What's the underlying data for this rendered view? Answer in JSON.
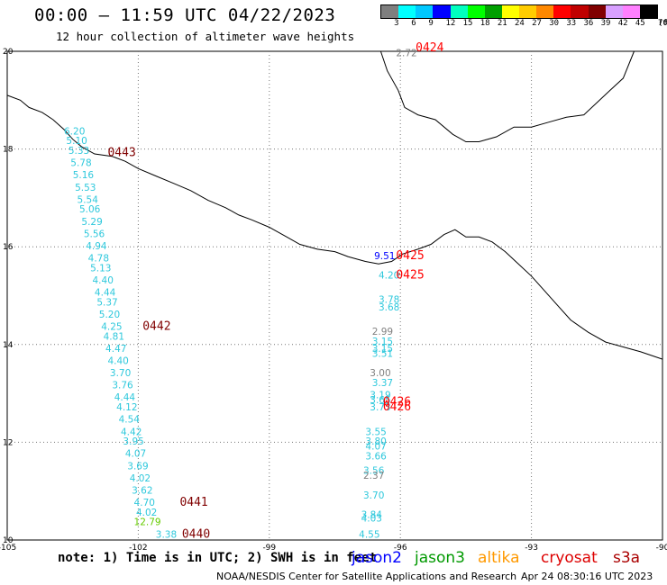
{
  "title": "00:00 – 11:59 UTC 04/22/2023",
  "subtitle": "12 hour collection of altimeter wave heights",
  "legend": {
    "labels": [
      "3",
      "6",
      "9",
      "12",
      "15",
      "18",
      "21",
      "24",
      "27",
      "30",
      "33",
      "36",
      "39",
      "42",
      "45",
      "70",
      "(ft)"
    ],
    "colors": [
      "#7f7f7f",
      "#00ffff",
      "#00c8ff",
      "#0000ff",
      "#00ffbf",
      "#00ff00",
      "#00a000",
      "#ffff00",
      "#ffcc00",
      "#ff8800",
      "#ff0000",
      "#c00000",
      "#800000",
      "#d8a0ff",
      "#ff80ff",
      "#000000"
    ]
  },
  "axes": {
    "x_ticks": [
      "-105",
      "-102",
      "-99",
      "-96",
      "-93",
      "-90"
    ],
    "y_ticks": [
      "20",
      "18",
      "16",
      "14",
      "12",
      "10"
    ]
  },
  "tracks": [
    {
      "name": "track-west-cyan",
      "color": "#2ec8dc",
      "points": [
        {
          "lon": -103.7,
          "lat": 18.3,
          "value": "6.20"
        },
        {
          "lon": -103.65,
          "lat": 18.1,
          "value": "5.10"
        },
        {
          "lon": -103.6,
          "lat": 17.9,
          "value": "5.33"
        },
        {
          "lon": -103.55,
          "lat": 17.65,
          "value": "5.78"
        },
        {
          "lon": -103.5,
          "lat": 17.4,
          "value": "5.16"
        },
        {
          "lon": -103.45,
          "lat": 17.15,
          "value": "5.53"
        },
        {
          "lon": -103.4,
          "lat": 16.9,
          "value": "5.54"
        },
        {
          "lon": -103.35,
          "lat": 16.7,
          "value": "5.06"
        },
        {
          "lon": -103.3,
          "lat": 16.45,
          "value": "5.29"
        },
        {
          "lon": -103.25,
          "lat": 16.2,
          "value": "5.56"
        },
        {
          "lon": -103.2,
          "lat": 15.95,
          "value": "4.94"
        },
        {
          "lon": -103.15,
          "lat": 15.7,
          "value": "4.78"
        },
        {
          "lon": -103.1,
          "lat": 15.5,
          "value": "5.13"
        },
        {
          "lon": -103.05,
          "lat": 15.25,
          "value": "4.40"
        },
        {
          "lon": -103.0,
          "lat": 15.0,
          "value": "4.44"
        },
        {
          "lon": -102.95,
          "lat": 14.8,
          "value": "5.37"
        },
        {
          "lon": -102.9,
          "lat": 14.55,
          "value": "5.20"
        },
        {
          "lon": -102.85,
          "lat": 14.3,
          "value": "4.25"
        },
        {
          "lon": -102.8,
          "lat": 14.1,
          "value": "4.81"
        },
        {
          "lon": -102.75,
          "lat": 13.85,
          "value": "4.47"
        },
        {
          "lon": -102.7,
          "lat": 13.6,
          "value": "4.40"
        },
        {
          "lon": -102.65,
          "lat": 13.35,
          "value": "3.70"
        },
        {
          "lon": -102.6,
          "lat": 13.1,
          "value": "3.76"
        },
        {
          "lon": -102.55,
          "lat": 12.85,
          "value": "4.44"
        },
        {
          "lon": -102.5,
          "lat": 12.65,
          "value": "4.12"
        },
        {
          "lon": -102.45,
          "lat": 12.4,
          "value": "4.54"
        },
        {
          "lon": -102.4,
          "lat": 12.15,
          "value": "4.42"
        },
        {
          "lon": -102.35,
          "lat": 11.95,
          "value": "3.95"
        },
        {
          "lon": -102.3,
          "lat": 11.7,
          "value": "4.07"
        },
        {
          "lon": -102.25,
          "lat": 11.45,
          "value": "3.69"
        },
        {
          "lon": -102.2,
          "lat": 11.2,
          "value": "4.02"
        },
        {
          "lon": -102.15,
          "lat": 10.95,
          "value": "3.62"
        },
        {
          "lon": -102.1,
          "lat": 10.7,
          "value": "4.70"
        },
        {
          "lon": -102.05,
          "lat": 10.5,
          "value": "4.02"
        },
        {
          "lon": -101.6,
          "lat": 10.05,
          "value": "3.38"
        }
      ]
    },
    {
      "name": "track-east-cyan",
      "color": "#2ec8dc",
      "points": [
        {
          "lon": -96.5,
          "lat": 15.35,
          "value": "4.20"
        },
        {
          "lon": -96.5,
          "lat": 14.85,
          "value": "3.78"
        },
        {
          "lon": -96.5,
          "lat": 14.7,
          "value": "3.68"
        },
        {
          "lon": -96.65,
          "lat": 14.0,
          "value": "3.15"
        },
        {
          "lon": -96.65,
          "lat": 13.85,
          "value": "3.15"
        },
        {
          "lon": -96.65,
          "lat": 13.75,
          "value": "3.51"
        },
        {
          "lon": -96.65,
          "lat": 13.15,
          "value": "3.37"
        },
        {
          "lon": -96.7,
          "lat": 12.9,
          "value": "3.19"
        },
        {
          "lon": -96.7,
          "lat": 12.8,
          "value": "3.65"
        },
        {
          "lon": -96.7,
          "lat": 12.65,
          "value": "3.73"
        },
        {
          "lon": -96.8,
          "lat": 12.15,
          "value": "3.55"
        },
        {
          "lon": -96.8,
          "lat": 11.95,
          "value": "3.80"
        },
        {
          "lon": -96.8,
          "lat": 11.85,
          "value": "4.07"
        },
        {
          "lon": -96.8,
          "lat": 11.65,
          "value": "3.66"
        },
        {
          "lon": -96.85,
          "lat": 11.35,
          "value": "3.56"
        },
        {
          "lon": -96.85,
          "lat": 10.85,
          "value": "3.70"
        },
        {
          "lon": -96.9,
          "lat": 10.45,
          "value": "3.84"
        },
        {
          "lon": -96.9,
          "lat": 10.38,
          "value": "4.03"
        },
        {
          "lon": -96.95,
          "lat": 10.05,
          "value": "4.55"
        }
      ]
    },
    {
      "name": "track-grey",
      "color": "#808080",
      "points": [
        {
          "lon": -96.1,
          "lat": 19.9,
          "value": "2.72"
        },
        {
          "lon": -96.65,
          "lat": 14.2,
          "value": "2.99"
        },
        {
          "lon": -96.7,
          "lat": 13.35,
          "value": "3.00"
        },
        {
          "lon": -96.85,
          "lat": 11.25,
          "value": "2.37"
        }
      ]
    },
    {
      "name": "track-blue",
      "color": "#0000ff",
      "points": [
        {
          "lon": -96.6,
          "lat": 15.75,
          "value": "9.51"
        }
      ]
    },
    {
      "name": "track-green",
      "color": "#66cc00",
      "points": [
        {
          "lon": -102.1,
          "lat": 10.3,
          "value": "12.79"
        }
      ]
    }
  ],
  "time_labels": [
    {
      "lon": -102.7,
      "lat": 17.85,
      "text": "0443",
      "color": "#800000"
    },
    {
      "lon": -101.9,
      "lat": 14.3,
      "text": "0442",
      "color": "#800000"
    },
    {
      "lon": -101.05,
      "lat": 10.7,
      "text": "0441",
      "color": "#800000"
    },
    {
      "lon": -101.0,
      "lat": 10.05,
      "text": "0440",
      "color": "#800000"
    },
    {
      "lon": -95.65,
      "lat": 20.0,
      "text": "0424",
      "color": "#ff0000"
    },
    {
      "lon": -96.1,
      "lat": 15.75,
      "text": "0425",
      "color": "#ff0000"
    },
    {
      "lon": -96.1,
      "lat": 15.35,
      "text": "0425",
      "color": "#ff0000"
    },
    {
      "lon": -96.4,
      "lat": 12.75,
      "text": "0426",
      "color": "#ff0000"
    },
    {
      "lon": -96.4,
      "lat": 12.65,
      "text": "0426",
      "color": "#ff0000"
    }
  ],
  "coastline": [
    [
      -105,
      19.1
    ],
    [
      -104.7,
      19.0
    ],
    [
      -104.5,
      18.85
    ],
    [
      -104.2,
      18.75
    ],
    [
      -103.95,
      18.6
    ],
    [
      -103.7,
      18.4
    ],
    [
      -103.5,
      18.2
    ],
    [
      -103.3,
      18.05
    ],
    [
      -103.0,
      17.9
    ],
    [
      -102.6,
      17.85
    ],
    [
      -102.3,
      17.75
    ],
    [
      -102.0,
      17.6
    ],
    [
      -101.6,
      17.45
    ],
    [
      -101.2,
      17.3
    ],
    [
      -100.8,
      17.15
    ],
    [
      -100.4,
      16.95
    ],
    [
      -100.0,
      16.8
    ],
    [
      -99.7,
      16.65
    ],
    [
      -99.4,
      16.55
    ],
    [
      -99.0,
      16.4
    ],
    [
      -98.6,
      16.2
    ],
    [
      -98.3,
      16.05
    ],
    [
      -97.9,
      15.95
    ],
    [
      -97.5,
      15.9
    ],
    [
      -97.2,
      15.8
    ],
    [
      -96.8,
      15.7
    ],
    [
      -96.5,
      15.65
    ],
    [
      -96.2,
      15.7
    ],
    [
      -95.95,
      15.85
    ],
    [
      -95.6,
      15.95
    ],
    [
      -95.3,
      16.05
    ],
    [
      -95.0,
      16.25
    ],
    [
      -94.75,
      16.35
    ],
    [
      -94.5,
      16.2
    ],
    [
      -94.2,
      16.2
    ],
    [
      -93.9,
      16.1
    ],
    [
      -93.6,
      15.9
    ],
    [
      -93.3,
      15.65
    ],
    [
      -93.0,
      15.4
    ],
    [
      -92.7,
      15.1
    ],
    [
      -92.4,
      14.8
    ],
    [
      -92.1,
      14.5
    ],
    [
      -91.7,
      14.25
    ],
    [
      -91.3,
      14.05
    ],
    [
      -90.9,
      13.95
    ],
    [
      -90.5,
      13.85
    ],
    [
      -90.0,
      13.7
    ]
  ],
  "gulf_coast": [
    [
      -96.45,
      20.0
    ],
    [
      -96.3,
      19.6
    ],
    [
      -96.05,
      19.2
    ],
    [
      -95.9,
      18.85
    ],
    [
      -95.6,
      18.7
    ],
    [
      -95.2,
      18.6
    ],
    [
      -94.8,
      18.3
    ],
    [
      -94.5,
      18.15
    ],
    [
      -94.2,
      18.15
    ],
    [
      -93.8,
      18.25
    ],
    [
      -93.4,
      18.45
    ],
    [
      -93.0,
      18.45
    ],
    [
      -92.6,
      18.55
    ],
    [
      -92.2,
      18.65
    ],
    [
      -91.8,
      18.7
    ],
    [
      -91.5,
      18.95
    ],
    [
      -91.2,
      19.2
    ],
    [
      -90.9,
      19.45
    ],
    [
      -90.65,
      20.0
    ]
  ],
  "footer": {
    "note": "note: 1) Time is in UTC; 2) SWH is in feet",
    "sats": [
      {
        "text": "jason2",
        "color": "#0000ff"
      },
      {
        "text": "jason3",
        "color": "#009900"
      },
      {
        "text": "altika",
        "color": "#ff9900"
      },
      {
        "text": "cryosat",
        "color": "#dd0000"
      },
      {
        "text": "s3a",
        "color": "#aa0000"
      }
    ],
    "credit": "NOAA/NESDIS Center for Satellite Applications and Research",
    "stamp": "Apr 24 08:30:16 UTC 2023"
  }
}
